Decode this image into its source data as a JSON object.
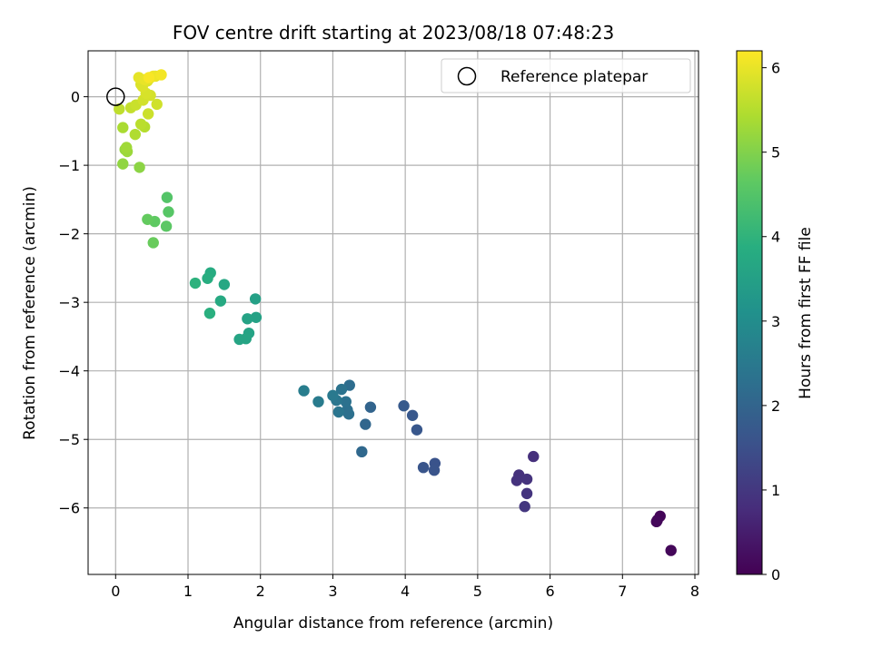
{
  "chart_data": {
    "type": "scatter",
    "title": "FOV centre drift starting at 2023/08/18 07:48:23",
    "xlabel": "Angular distance from reference (arcmin)",
    "ylabel": "Rotation from reference (arcmin)",
    "xlim": [
      -0.38,
      8.05
    ],
    "ylim": [
      -6.97,
      0.67
    ],
    "xticks": [
      0,
      1,
      2,
      3,
      4,
      5,
      6,
      7,
      8
    ],
    "yticks": [
      0,
      -1,
      -2,
      -3,
      -4,
      -5,
      -6
    ],
    "xtick_labels": [
      "0",
      "1",
      "2",
      "3",
      "4",
      "5",
      "6",
      "7",
      "8"
    ],
    "ytick_labels": [
      "0",
      "−1",
      "−2",
      "−3",
      "−4",
      "−5",
      "−6"
    ],
    "grid": true,
    "legend": {
      "position": "top-right",
      "label": "Reference platepar"
    },
    "reference_point": {
      "x": 0,
      "y": 0
    },
    "colorbar": {
      "label": "Hours from first FF file",
      "range": [
        0,
        6.2
      ],
      "ticks": [
        0,
        1,
        2,
        3,
        4,
        5,
        6
      ],
      "tick_labels": [
        "0",
        "1",
        "2",
        "3",
        "4",
        "5",
        "6"
      ],
      "colormap": "viridis"
    },
    "points": [
      {
        "x": 7.48,
        "y": -6.18,
        "h": 0.05
      },
      {
        "x": 7.52,
        "y": -6.12,
        "h": 0.08
      },
      {
        "x": 7.67,
        "y": -6.62,
        "h": 0.1
      },
      {
        "x": 7.47,
        "y": -6.2,
        "h": 0.12
      },
      {
        "x": 5.77,
        "y": -5.25,
        "h": 0.85
      },
      {
        "x": 5.57,
        "y": -5.52,
        "h": 0.88
      },
      {
        "x": 5.54,
        "y": -5.6,
        "h": 0.9
      },
      {
        "x": 5.68,
        "y": -5.58,
        "h": 0.92
      },
      {
        "x": 5.68,
        "y": -5.79,
        "h": 0.95
      },
      {
        "x": 5.65,
        "y": -5.98,
        "h": 1.0
      },
      {
        "x": 4.41,
        "y": -5.35,
        "h": 1.6
      },
      {
        "x": 4.4,
        "y": -5.45,
        "h": 1.62
      },
      {
        "x": 4.25,
        "y": -5.41,
        "h": 1.65
      },
      {
        "x": 4.16,
        "y": -4.86,
        "h": 1.7
      },
      {
        "x": 4.1,
        "y": -4.65,
        "h": 1.72
      },
      {
        "x": 3.98,
        "y": -4.51,
        "h": 1.75
      },
      {
        "x": 3.52,
        "y": -4.53,
        "h": 2.0
      },
      {
        "x": 3.45,
        "y": -4.78,
        "h": 2.05
      },
      {
        "x": 3.4,
        "y": -5.18,
        "h": 2.1
      },
      {
        "x": 3.23,
        "y": -4.21,
        "h": 2.2
      },
      {
        "x": 3.2,
        "y": -4.57,
        "h": 2.25
      },
      {
        "x": 3.22,
        "y": -4.63,
        "h": 2.28
      },
      {
        "x": 3.18,
        "y": -4.45,
        "h": 2.3
      },
      {
        "x": 3.12,
        "y": -4.27,
        "h": 2.35
      },
      {
        "x": 3.08,
        "y": -4.6,
        "h": 2.4
      },
      {
        "x": 3.05,
        "y": -4.43,
        "h": 2.42
      },
      {
        "x": 3.0,
        "y": -4.36,
        "h": 2.5
      },
      {
        "x": 2.8,
        "y": -4.45,
        "h": 2.55
      },
      {
        "x": 2.6,
        "y": -4.29,
        "h": 2.6
      },
      {
        "x": 1.93,
        "y": -2.95,
        "h": 3.5
      },
      {
        "x": 1.94,
        "y": -3.22,
        "h": 3.52
      },
      {
        "x": 1.82,
        "y": -3.24,
        "h": 3.55
      },
      {
        "x": 1.84,
        "y": -3.45,
        "h": 3.57
      },
      {
        "x": 1.8,
        "y": -3.53,
        "h": 3.6
      },
      {
        "x": 1.71,
        "y": -3.54,
        "h": 3.62
      },
      {
        "x": 1.5,
        "y": -2.74,
        "h": 3.7
      },
      {
        "x": 1.45,
        "y": -2.98,
        "h": 3.75
      },
      {
        "x": 1.31,
        "y": -2.57,
        "h": 3.8
      },
      {
        "x": 1.27,
        "y": -2.65,
        "h": 3.85
      },
      {
        "x": 1.3,
        "y": -3.16,
        "h": 3.9
      },
      {
        "x": 1.1,
        "y": -2.72,
        "h": 3.95
      },
      {
        "x": 0.71,
        "y": -1.47,
        "h": 4.5
      },
      {
        "x": 0.73,
        "y": -1.68,
        "h": 4.55
      },
      {
        "x": 0.7,
        "y": -1.89,
        "h": 4.6
      },
      {
        "x": 0.54,
        "y": -1.82,
        "h": 4.65
      },
      {
        "x": 0.44,
        "y": -1.79,
        "h": 4.7
      },
      {
        "x": 0.52,
        "y": -2.13,
        "h": 4.75
      },
      {
        "x": 0.33,
        "y": -1.03,
        "h": 5.1
      },
      {
        "x": 0.1,
        "y": -0.98,
        "h": 5.15
      },
      {
        "x": 0.13,
        "y": -0.77,
        "h": 5.2
      },
      {
        "x": 0.16,
        "y": -0.8,
        "h": 5.25
      },
      {
        "x": 0.15,
        "y": -0.74,
        "h": 5.3
      },
      {
        "x": 0.1,
        "y": -0.45,
        "h": 5.4
      },
      {
        "x": 0.27,
        "y": -0.55,
        "h": 5.45
      },
      {
        "x": 0.4,
        "y": -0.44,
        "h": 5.5
      },
      {
        "x": 0.35,
        "y": -0.4,
        "h": 5.55
      },
      {
        "x": 0.05,
        "y": -0.18,
        "h": 5.6
      },
      {
        "x": 0.21,
        "y": -0.16,
        "h": 5.65
      },
      {
        "x": 0.28,
        "y": -0.12,
        "h": 5.7
      },
      {
        "x": 0.45,
        "y": -0.25,
        "h": 5.72
      },
      {
        "x": 0.57,
        "y": -0.11,
        "h": 5.75
      },
      {
        "x": 0.38,
        "y": -0.05,
        "h": 5.78
      },
      {
        "x": 0.48,
        "y": 0.02,
        "h": 5.8
      },
      {
        "x": 0.42,
        "y": 0.05,
        "h": 5.83
      },
      {
        "x": 0.35,
        "y": 0.18,
        "h": 5.85
      },
      {
        "x": 0.37,
        "y": 0.15,
        "h": 5.88
      },
      {
        "x": 0.44,
        "y": 0.23,
        "h": 5.9
      },
      {
        "x": 0.47,
        "y": 0.27,
        "h": 5.93
      },
      {
        "x": 0.55,
        "y": 0.3,
        "h": 5.95
      },
      {
        "x": 0.32,
        "y": 0.28,
        "h": 5.97
      },
      {
        "x": 0.4,
        "y": 0.25,
        "h": 6.0
      },
      {
        "x": 0.52,
        "y": 0.3,
        "h": 6.05
      },
      {
        "x": 0.63,
        "y": 0.32,
        "h": 6.1
      },
      {
        "x": 0.46,
        "y": 0.28,
        "h": 6.15
      }
    ]
  }
}
